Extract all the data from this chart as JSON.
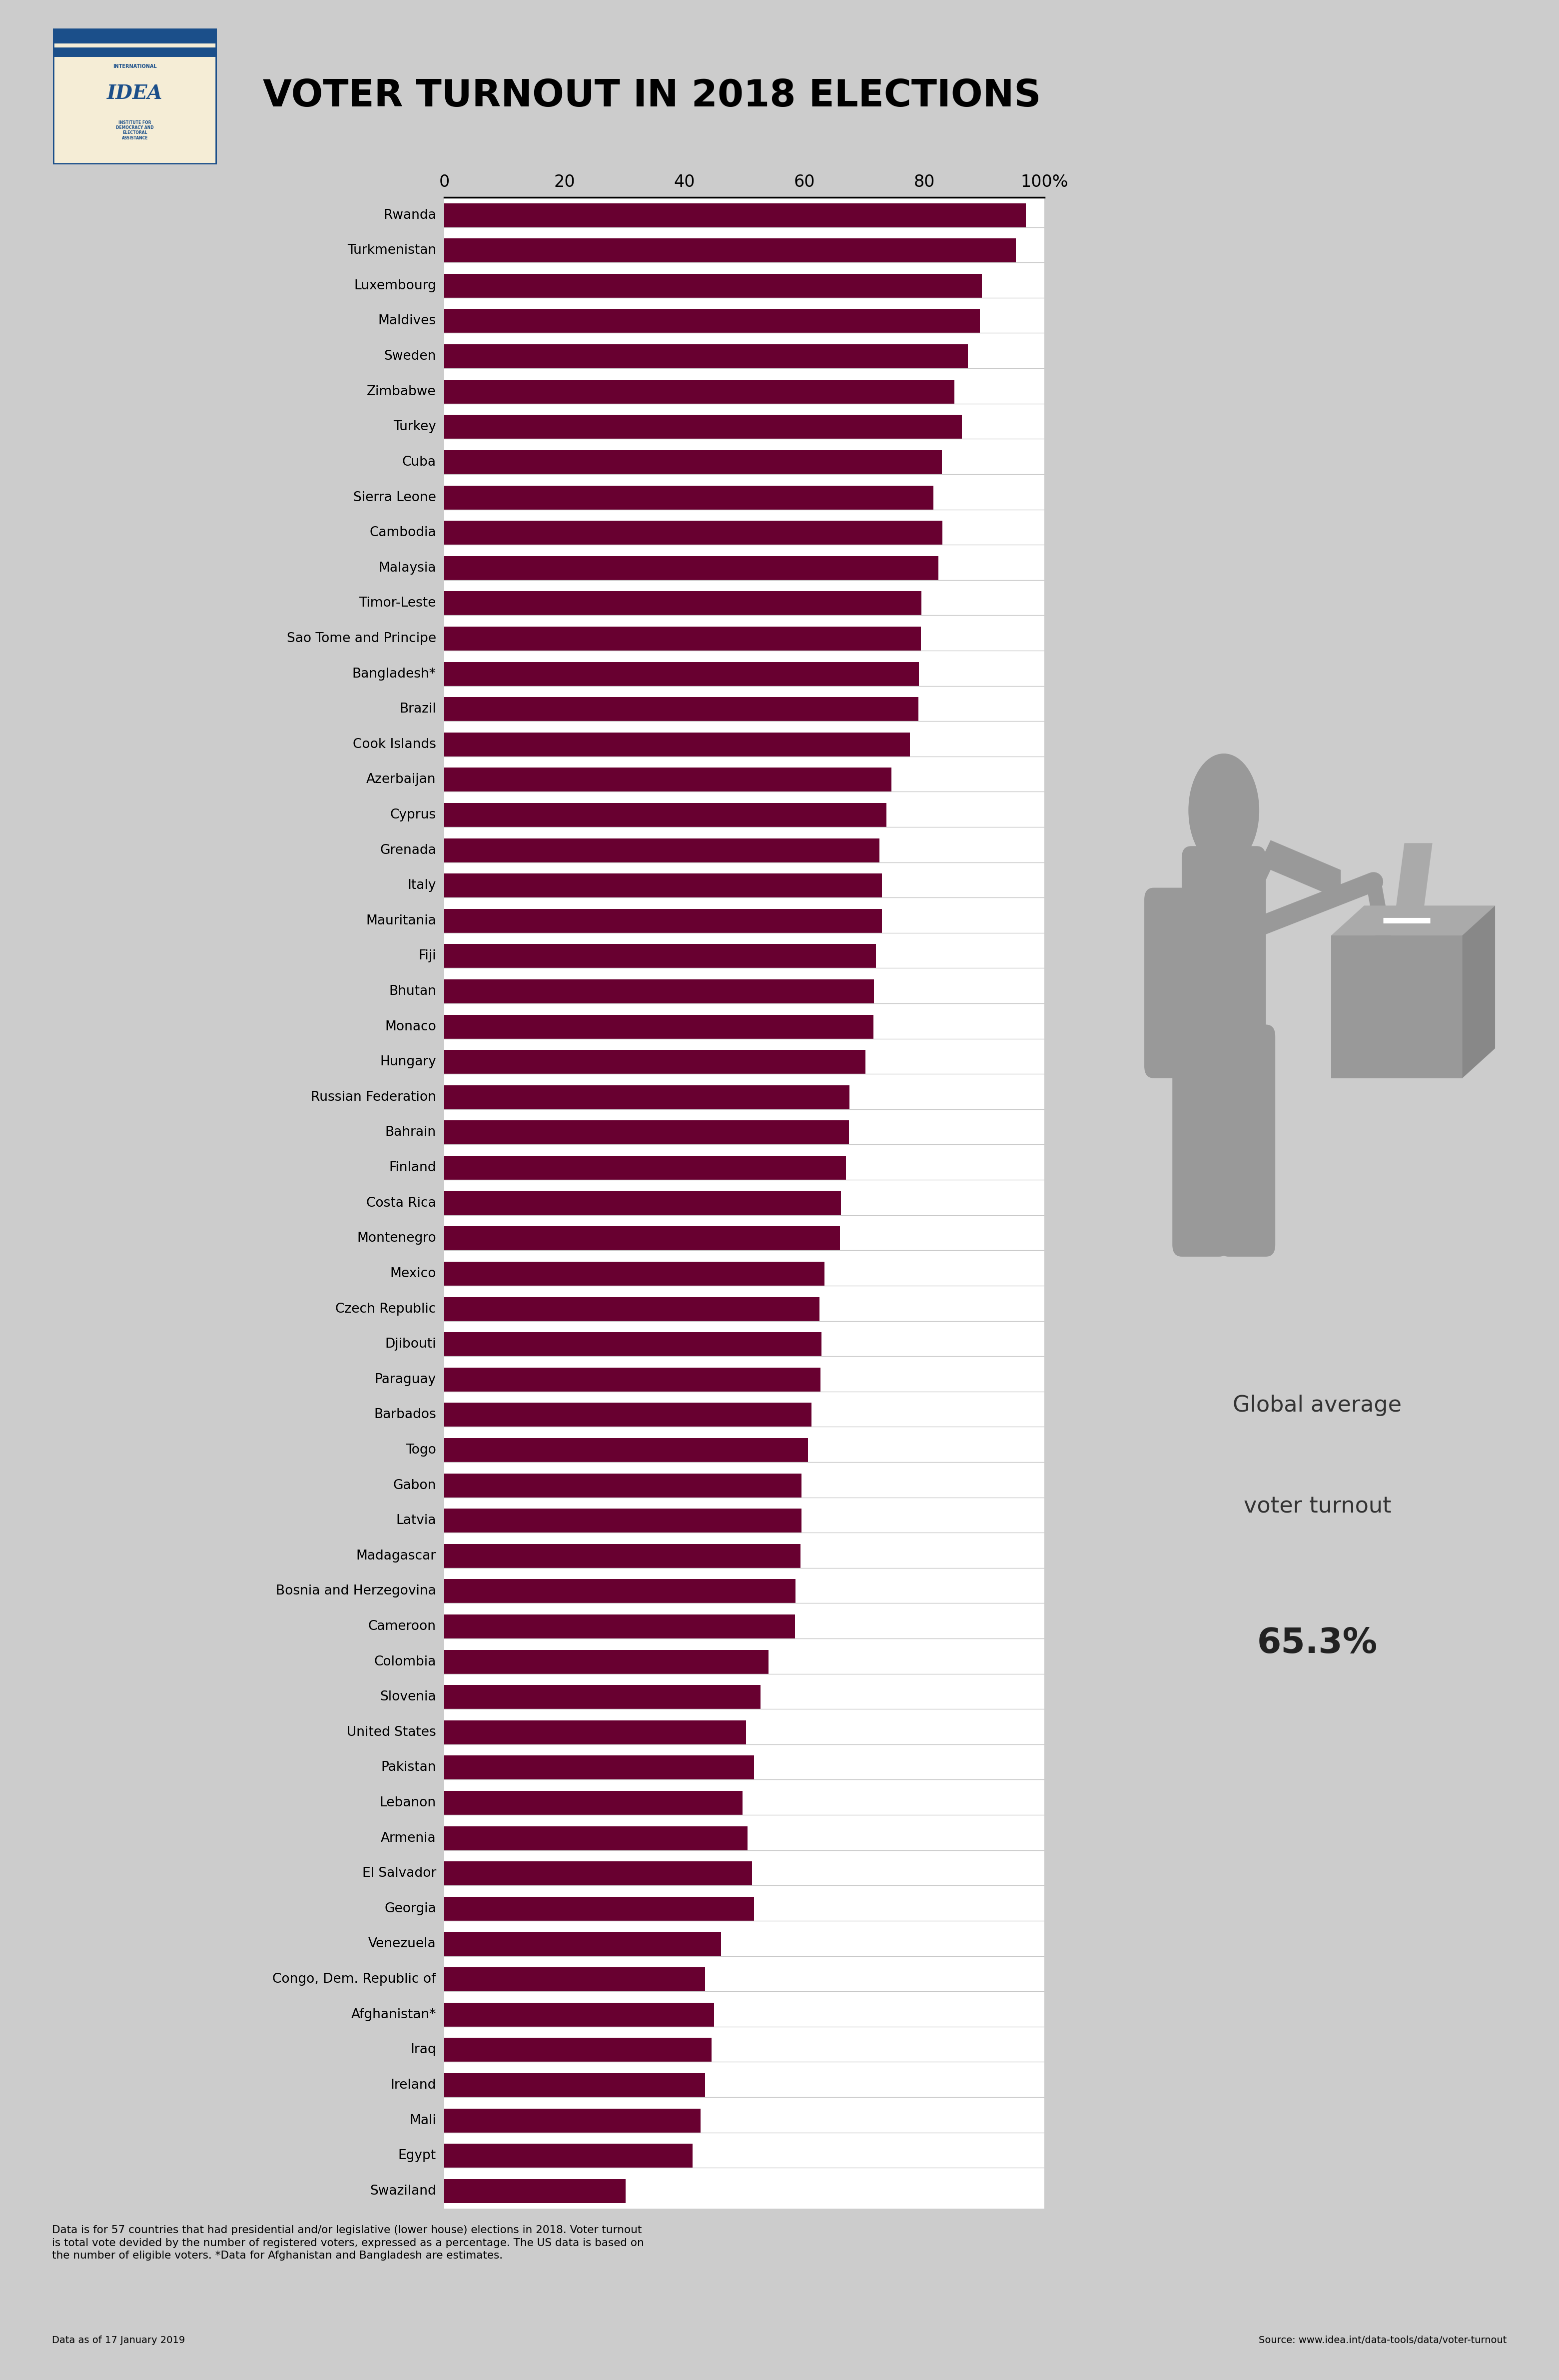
{
  "title": "VOTER TURNOUT IN 2018 ELECTIONS",
  "countries": [
    "Rwanda",
    "Turkmenistan",
    "Luxembourg",
    "Maldives",
    "Sweden",
    "Zimbabwe",
    "Turkey",
    "Cuba",
    "Sierra Leone",
    "Cambodia",
    "Malaysia",
    "Timor-Leste",
    "Sao Tome and Principe",
    "Bangladesh*",
    "Brazil",
    "Cook Islands",
    "Azerbaijan",
    "Cyprus",
    "Grenada",
    "Italy",
    "Mauritania",
    "Fiji",
    "Bhutan",
    "Monaco",
    "Hungary",
    "Russian Federation",
    "Bahrain",
    "Finland",
    "Costa Rica",
    "Montenegro",
    "Mexico",
    "Czech Republic",
    "Djibouti",
    "Paraguay",
    "Barbados",
    "Togo",
    "Gabon",
    "Latvia",
    "Madagascar",
    "Bosnia and Herzegovina",
    "Cameroon",
    "Colombia",
    "Slovenia",
    "United States",
    "Pakistan",
    "Lebanon",
    "Armenia",
    "El Salvador",
    "Georgia",
    "Venezuela",
    "Congo, Dem. Republic of",
    "Afghanistan*",
    "Iraq",
    "Ireland",
    "Mali",
    "Egypt",
    "Swaziland"
  ],
  "values": [
    96.9,
    95.2,
    89.6,
    89.2,
    87.2,
    85.0,
    86.2,
    82.9,
    81.5,
    83.0,
    82.3,
    79.5,
    79.4,
    79.1,
    79.0,
    77.6,
    74.5,
    73.7,
    72.5,
    72.9,
    72.9,
    71.9,
    71.6,
    71.5,
    70.2,
    67.5,
    67.4,
    66.9,
    66.1,
    65.9,
    63.3,
    62.5,
    62.8,
    62.7,
    61.2,
    60.6,
    59.5,
    59.5,
    59.3,
    58.5,
    58.4,
    54.0,
    52.7,
    50.3,
    51.6,
    49.7,
    50.5,
    51.3,
    51.6,
    46.1,
    43.4,
    44.9,
    44.5,
    43.4,
    42.7,
    41.4,
    30.2
  ],
  "bar_color": "#680030",
  "bg_color": "#FFFFFF",
  "outer_bg_color": "#CCCCCC",
  "global_avg": "65.3%",
  "global_avg_label1": "Global average",
  "global_avg_label2": "voter turnout",
  "footnote_line1": "Data is for 57 countries that had presidential and/or legislative (lower house) elections in 2018. Voter turnout",
  "footnote_line2": "is total vote devided by the number of registered voters, expressed as a percentage. The US data is based on",
  "footnote_line3": "the number of eligible voters. *Data for Afghanistan and Bangladesh are estimates.",
  "source": "Source: www.idea.int/data-tools/data/voter-turnout",
  "date_label": "Data as of 17 January 2019",
  "xtick_labels": [
    "0",
    "20",
    "40",
    "60",
    "80",
    "100%"
  ],
  "xtick_values": [
    0,
    20,
    40,
    60,
    80,
    100
  ],
  "icon_color": "#999999",
  "logo_blue": "#1B4F8A",
  "logo_bg": "#F5EDD6"
}
